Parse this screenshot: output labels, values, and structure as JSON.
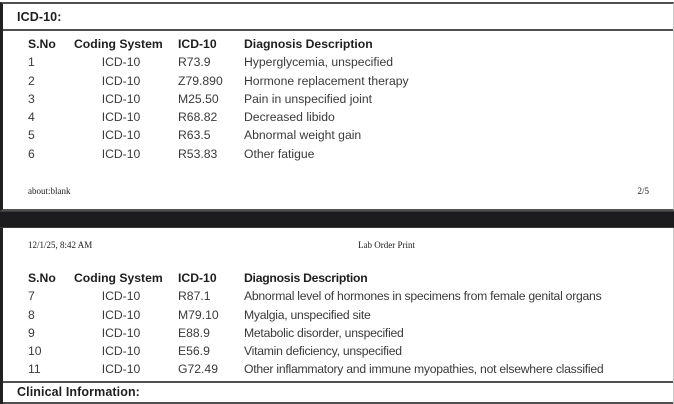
{
  "page1": {
    "section_title": "ICD-10:",
    "table": {
      "headers": [
        "S.No",
        "Coding System",
        "ICD-10",
        "Diagnosis Description"
      ],
      "rows": [
        [
          "1",
          "ICD-10",
          "R73.9",
          "Hyperglycemia, unspecified"
        ],
        [
          "2",
          "ICD-10",
          "Z79.890",
          "Hormone replacement therapy"
        ],
        [
          "3",
          "ICD-10",
          "M25.50",
          "Pain in unspecified joint"
        ],
        [
          "4",
          "ICD-10",
          "R68.82",
          "Decreased libido"
        ],
        [
          "5",
          "ICD-10",
          "R63.5",
          "Abnormal weight gain"
        ],
        [
          "6",
          "ICD-10",
          "R53.83",
          "Other fatigue"
        ]
      ]
    },
    "footer": {
      "left": "about:blank",
      "right": "2/5"
    }
  },
  "page2": {
    "header": {
      "date": "12/1/25, 8:42 AM",
      "title": "Lab Order Print"
    },
    "table": {
      "headers": [
        "S.No",
        "Coding System",
        "ICD-10",
        "Diagnosis Description"
      ],
      "rows": [
        [
          "7",
          "ICD-10",
          "R87.1",
          "Abnormal level of hormones in specimens from female genital organs"
        ],
        [
          "8",
          "ICD-10",
          "M79.10",
          "Myalgia, unspecified site"
        ],
        [
          "9",
          "ICD-10",
          "E88.9",
          "Metabolic disorder, unspecified"
        ],
        [
          "10",
          "ICD-10",
          "E56.9",
          "Vitamin deficiency, unspecified"
        ],
        [
          "11",
          "ICD-10",
          "G72.49",
          "Other inflammatory and immune myopathies, not elsewhere classified"
        ]
      ]
    },
    "section_title": "Clinical Information:"
  },
  "colors": {
    "text": "#363636",
    "heading_text": "#1e1e1e",
    "rule_line": "#4f4f4f",
    "page_divider": "#1c1c1e"
  }
}
